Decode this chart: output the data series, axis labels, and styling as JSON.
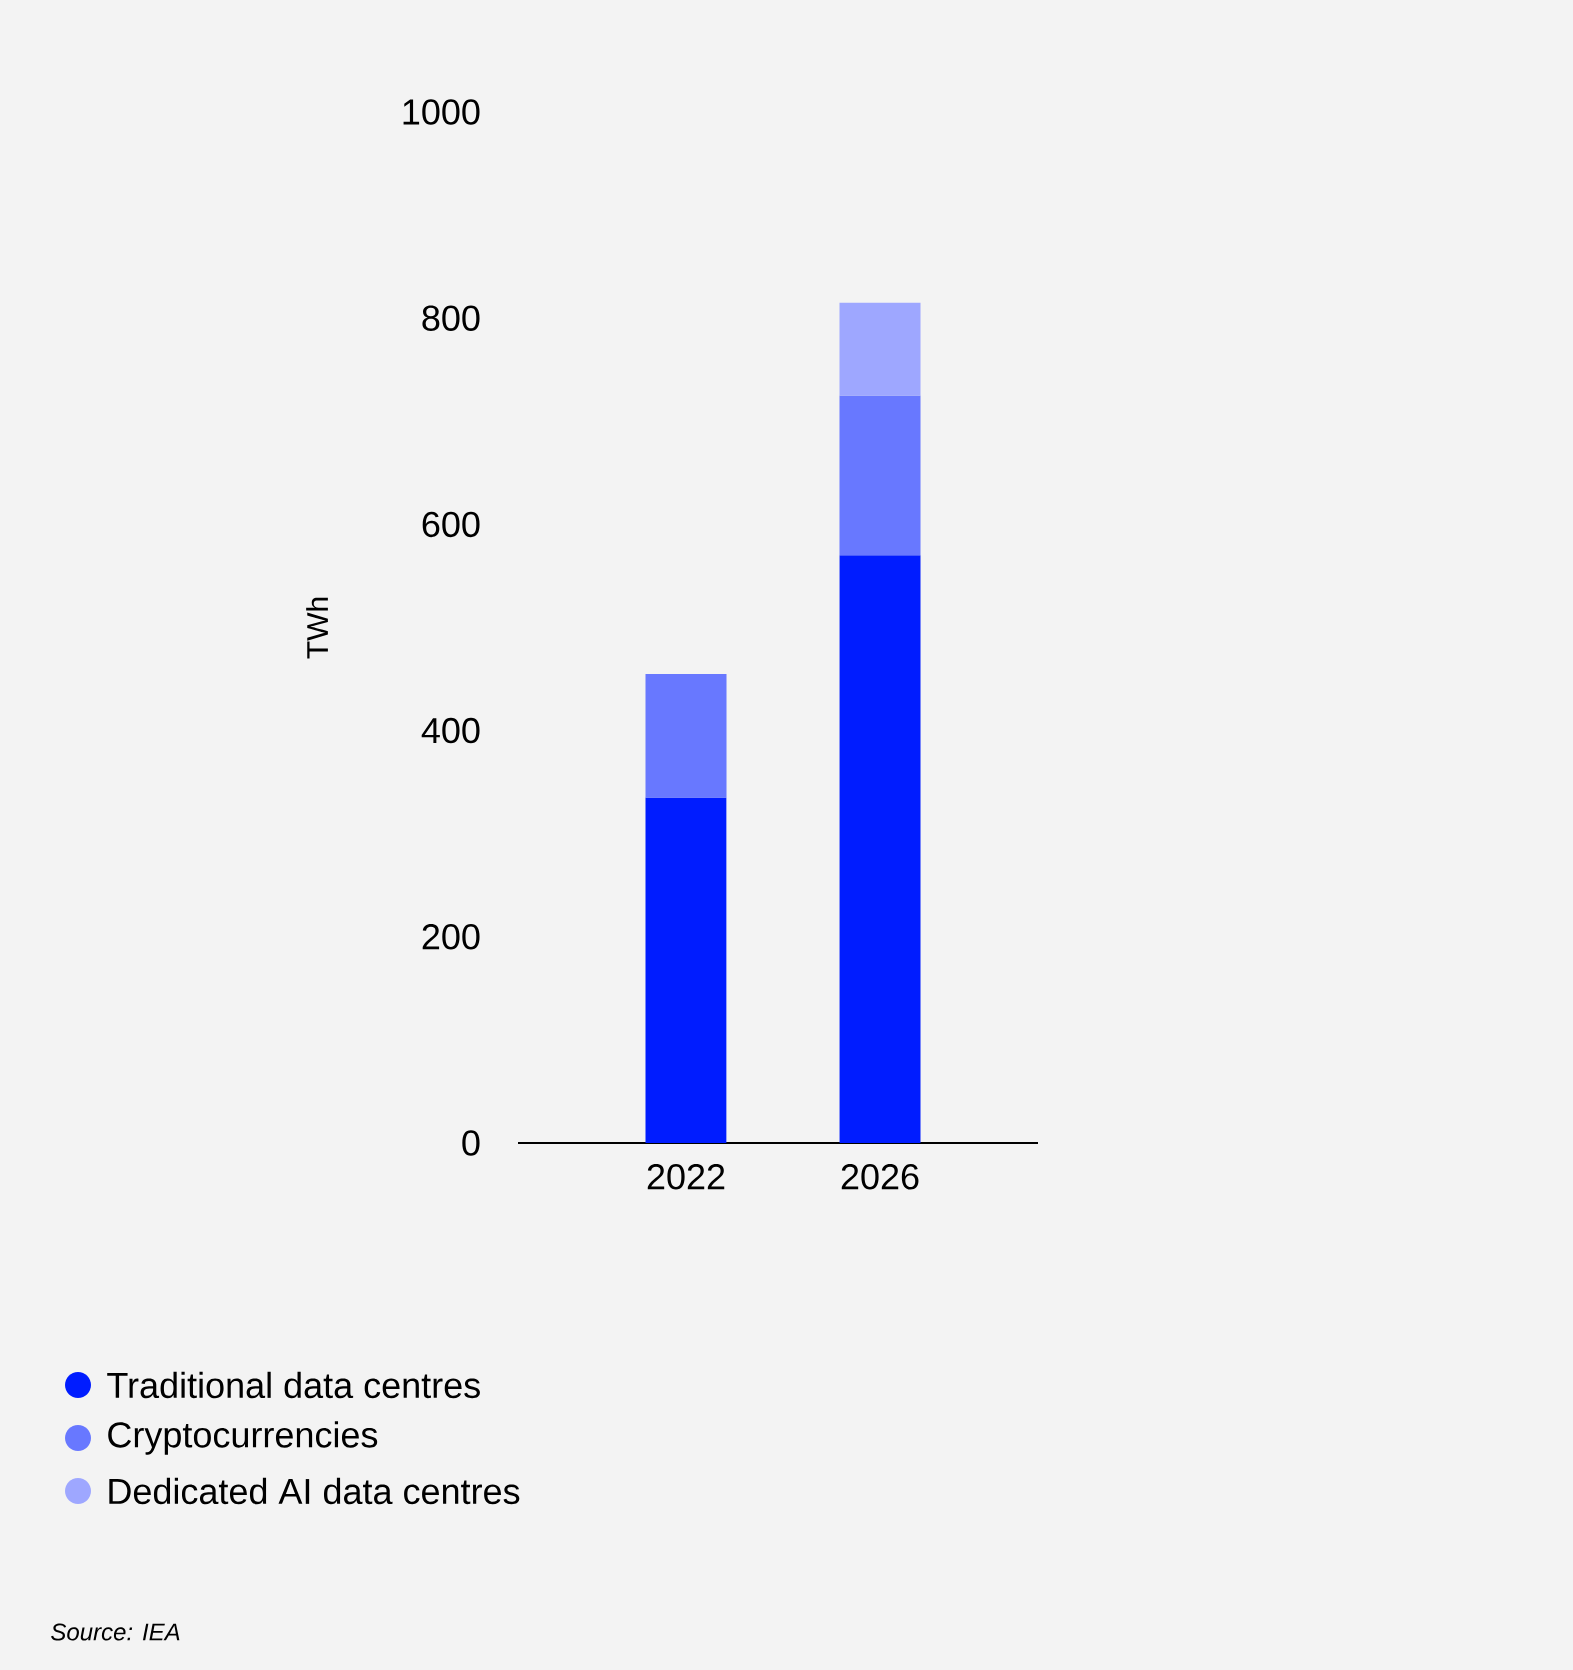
{
  "chart_data": {
    "type": "bar",
    "stacked": true,
    "ylabel": "TWh",
    "categories": [
      "2022",
      "2026"
    ],
    "series": [
      {
        "name": "Traditional data centres",
        "color": "#001cff",
        "values": [
          335,
          570
        ]
      },
      {
        "name": "Cryptocurrencies",
        "color": "#6878ff",
        "values": [
          120,
          155
        ]
      },
      {
        "name": "Dedicated AI data centres",
        "color": "#9ea7ff",
        "values": [
          null,
          90
        ]
      }
    ],
    "ylim": [
      0,
      1000
    ],
    "yticks": [
      0,
      200,
      400,
      600,
      800,
      1000
    ],
    "legend": "bottom left",
    "annotations": [
      "*Source: IEA*"
    ]
  }
}
